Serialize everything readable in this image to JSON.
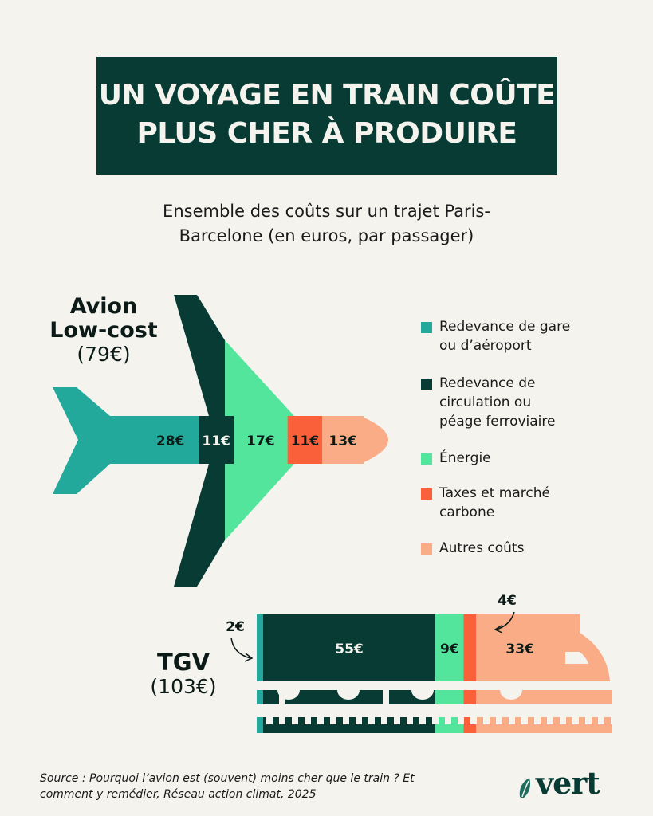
{
  "title": {
    "line1": "UN VOYAGE EN TRAIN COÛTE",
    "line2": "PLUS CHER À PRODUIRE"
  },
  "subtitle": {
    "line1": "Ensemble des coûts sur un trajet Paris-",
    "line2": "Barcelone (en euros, par passager)"
  },
  "colors": {
    "station_fee": "#23a89c",
    "circulation_fee": "#073b34",
    "energy": "#52e59b",
    "taxes": "#fa6039",
    "other": "#f9ac86",
    "background": "#f4f3ee"
  },
  "legend": [
    {
      "label": "Redevance de gare\nou d’aéroport",
      "color": "#23a89c"
    },
    {
      "label": "Redevance de\ncirculation ou\npéage ferroviaire",
      "color": "#073b34"
    },
    {
      "label": "Énergie",
      "color": "#52e59b"
    },
    {
      "label": "Taxes et marché\ncarbone",
      "color": "#fa6039"
    },
    {
      "label": "Autres coûts",
      "color": "#f9ac86"
    }
  ],
  "chart_data": [
    {
      "type": "bar",
      "name": "Avion Low-cost",
      "label_line1": "Avion",
      "label_line2": "Low-cost",
      "total_label": "(79€)",
      "total": 79,
      "categories": [
        "Redevance de gare ou d’aéroport",
        "Redevance de circulation ou péage ferroviaire",
        "Énergie",
        "Taxes et marché carbone",
        "Autres coûts"
      ],
      "values": [
        28,
        11,
        17,
        11,
        13
      ],
      "value_labels": [
        "28€",
        "11€",
        "17€",
        "11€",
        "13€"
      ],
      "stacked": true
    },
    {
      "type": "bar",
      "name": "TGV",
      "label_line1": "TGV",
      "total_label": "(103€)",
      "total": 103,
      "categories": [
        "Redevance de gare ou d’aéroport",
        "Redevance de circulation ou péage ferroviaire",
        "Énergie",
        "Taxes et marché carbone",
        "Autres coûts"
      ],
      "values": [
        2,
        55,
        9,
        4,
        33
      ],
      "value_labels": [
        "2€",
        "55€",
        "9€",
        "4€",
        "33€"
      ],
      "stacked": true
    }
  ],
  "source": "Source : Pourquoi l’avion est (souvent) moins cher que le train ? Et comment y remédier, Réseau action climat, 2025",
  "logo": {
    "text": "vert"
  }
}
